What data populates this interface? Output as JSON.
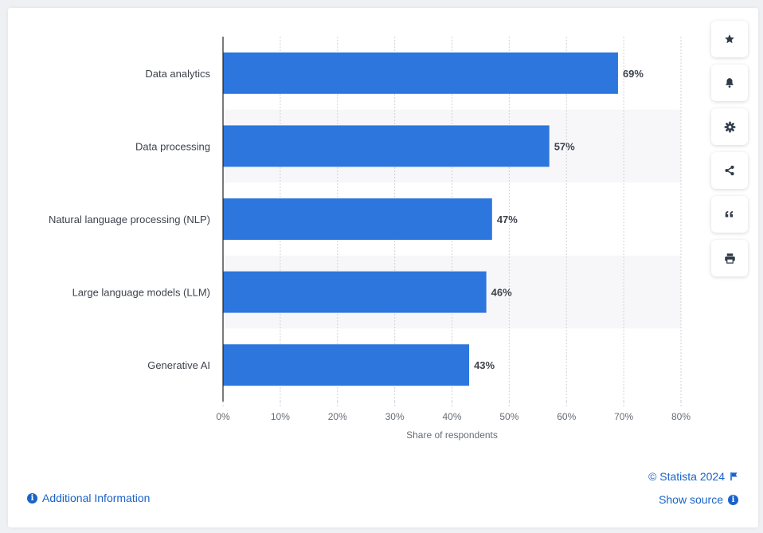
{
  "chart_data": {
    "type": "bar",
    "orientation": "horizontal",
    "categories": [
      "Data analytics",
      "Data processing",
      "Natural language processing (NLP)",
      "Large language models (LLM)",
      "Generative AI"
    ],
    "values": [
      69,
      57,
      47,
      46,
      43
    ],
    "data_labels": [
      "69%",
      "57%",
      "47%",
      "46%",
      "43%"
    ],
    "xlabel": "Share of respondents",
    "xlim": [
      0,
      80
    ],
    "xticks": [
      "0%",
      "10%",
      "20%",
      "30%",
      "40%",
      "50%",
      "60%",
      "70%",
      "80%"
    ],
    "grid": true,
    "bar_color": "#2c76de"
  },
  "toolbar": {
    "buttons": [
      {
        "name": "favorite",
        "icon": "star-icon"
      },
      {
        "name": "notification",
        "icon": "bell-icon"
      },
      {
        "name": "settings",
        "icon": "gear-icon"
      },
      {
        "name": "share",
        "icon": "share-icon"
      },
      {
        "name": "cite",
        "icon": "quote-icon"
      },
      {
        "name": "print",
        "icon": "print-icon"
      }
    ]
  },
  "footer": {
    "additional_info": "Additional Information",
    "copyright": "© Statista 2024",
    "show_source": "Show source"
  }
}
